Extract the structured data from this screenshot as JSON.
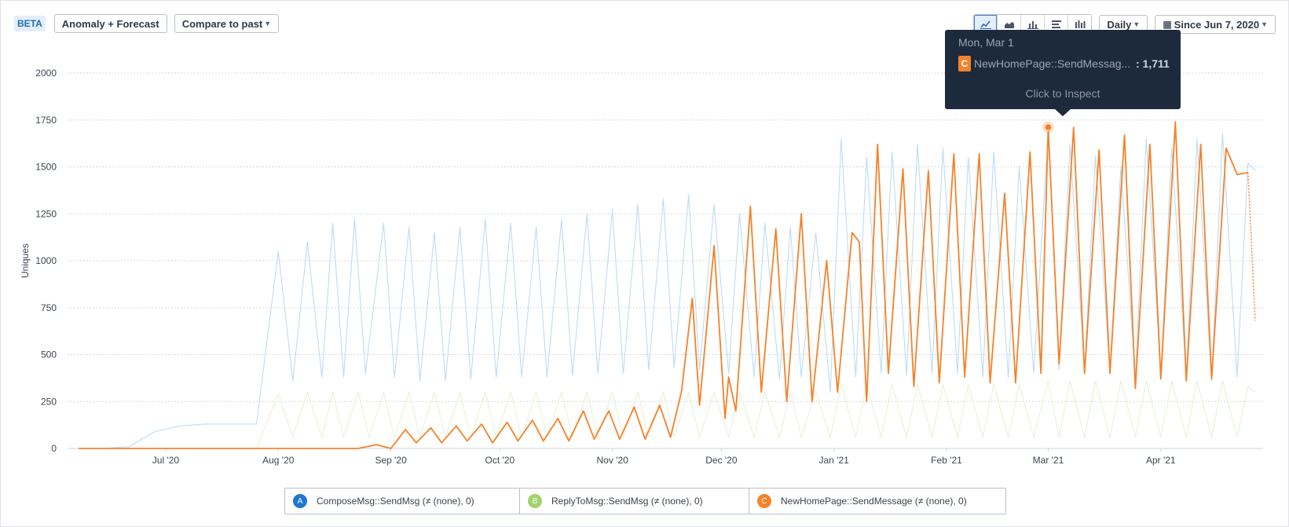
{
  "toolbar": {
    "beta": "BETA",
    "anomaly_label": "Anomaly + Forecast",
    "compare_label": "Compare to past",
    "interval_label": "Daily",
    "range_label": "Since Jun 7, 2020",
    "chart_types": [
      "line-chart-icon",
      "area-chart-icon",
      "bar-chart-icon",
      "horizontal-bar-icon",
      "stacked-bar-icon"
    ]
  },
  "tooltip": {
    "date": "Mon, Mar 1",
    "badge": "C",
    "series_name": "NewHomePage::SendMessag...",
    "value": ": 1,711",
    "action": "Click to Inspect"
  },
  "legend": [
    {
      "badge": "A",
      "label": "ComposeMsg::SendMsg (≠ (none), 0)",
      "color": "#1f77d0"
    },
    {
      "badge": "B",
      "label": "ReplyToMsg::SendMsg (≠ (none), 0)",
      "color": "#a3d16b"
    },
    {
      "badge": "C",
      "label": "NewHomePage::SendMessage (≠ (none), 0)",
      "color": "#f5822a"
    }
  ],
  "chart_data": {
    "type": "line",
    "ylabel": "Uniques",
    "ylim": [
      0,
      2000
    ],
    "yticks": [
      0,
      250,
      500,
      750,
      1000,
      1250,
      1500,
      1750,
      2000
    ],
    "x_range": [
      "2020-06-07",
      "2021-04-27"
    ],
    "x_ticks": [
      {
        "date": "2020-07-01",
        "label": "Jul '20"
      },
      {
        "date": "2020-08-01",
        "label": "Aug '20"
      },
      {
        "date": "2020-09-01",
        "label": "Sep '20"
      },
      {
        "date": "2020-10-01",
        "label": "Oct '20"
      },
      {
        "date": "2020-11-01",
        "label": "Nov '20"
      },
      {
        "date": "2020-12-01",
        "label": "Dec '20"
      },
      {
        "date": "2021-01-01",
        "label": "Jan '21"
      },
      {
        "date": "2021-02-01",
        "label": "Feb '21"
      },
      {
        "date": "2021-03-01",
        "label": "Mar '21"
      },
      {
        "date": "2021-04-01",
        "label": "Apr '21"
      }
    ],
    "grid": true,
    "highlight": {
      "series": "NewHomePage::SendMessage",
      "date": "2021-03-01",
      "value": 1711
    },
    "series": [
      {
        "name": "ComposeMsg::SendMsg",
        "color": "#bcdcf4",
        "points": [
          [
            "2020-06-07",
            0
          ],
          [
            "2020-06-14",
            0
          ],
          [
            "2020-06-21",
            10
          ],
          [
            "2020-06-28",
            90
          ],
          [
            "2020-07-05",
            120
          ],
          [
            "2020-07-12",
            130
          ],
          [
            "2020-07-19",
            130
          ],
          [
            "2020-07-26",
            130
          ],
          [
            "2020-08-01",
            1050
          ],
          [
            "2020-08-05",
            360
          ],
          [
            "2020-08-09",
            1100
          ],
          [
            "2020-08-13",
            380
          ],
          [
            "2020-08-16",
            1200
          ],
          [
            "2020-08-19",
            380
          ],
          [
            "2020-08-22",
            1220
          ],
          [
            "2020-08-25",
            400
          ],
          [
            "2020-08-30",
            1200
          ],
          [
            "2020-09-02",
            380
          ],
          [
            "2020-09-06",
            1180
          ],
          [
            "2020-09-09",
            360
          ],
          [
            "2020-09-13",
            1150
          ],
          [
            "2020-09-16",
            360
          ],
          [
            "2020-09-20",
            1180
          ],
          [
            "2020-09-23",
            370
          ],
          [
            "2020-09-27",
            1220
          ],
          [
            "2020-09-30",
            380
          ],
          [
            "2020-10-04",
            1200
          ],
          [
            "2020-10-07",
            380
          ],
          [
            "2020-10-11",
            1180
          ],
          [
            "2020-10-14",
            380
          ],
          [
            "2020-10-18",
            1220
          ],
          [
            "2020-10-21",
            390
          ],
          [
            "2020-10-25",
            1250
          ],
          [
            "2020-10-28",
            400
          ],
          [
            "2020-11-01",
            1270
          ],
          [
            "2020-11-04",
            400
          ],
          [
            "2020-11-08",
            1300
          ],
          [
            "2020-11-11",
            420
          ],
          [
            "2020-11-15",
            1330
          ],
          [
            "2020-11-18",
            430
          ],
          [
            "2020-11-22",
            1350
          ],
          [
            "2020-11-25",
            420
          ],
          [
            "2020-11-29",
            1300
          ],
          [
            "2020-12-03",
            400
          ],
          [
            "2020-12-06",
            1250
          ],
          [
            "2020-12-10",
            380
          ],
          [
            "2020-12-13",
            1200
          ],
          [
            "2020-12-17",
            370
          ],
          [
            "2020-12-20",
            1180
          ],
          [
            "2020-12-23",
            380
          ],
          [
            "2020-12-27",
            1150
          ],
          [
            "2020-12-31",
            300
          ],
          [
            "2021-01-03",
            1650
          ],
          [
            "2021-01-07",
            380
          ],
          [
            "2021-01-10",
            1550
          ],
          [
            "2021-01-14",
            400
          ],
          [
            "2021-01-17",
            1580
          ],
          [
            "2021-01-21",
            390
          ],
          [
            "2021-01-24",
            1620
          ],
          [
            "2021-01-28",
            400
          ],
          [
            "2021-01-31",
            1600
          ],
          [
            "2021-02-04",
            400
          ],
          [
            "2021-02-07",
            1550
          ],
          [
            "2021-02-11",
            380
          ],
          [
            "2021-02-14",
            1580
          ],
          [
            "2021-02-18",
            380
          ],
          [
            "2021-02-21",
            1500
          ],
          [
            "2021-02-25",
            400
          ],
          [
            "2021-03-01",
            1700
          ],
          [
            "2021-03-04",
            420
          ],
          [
            "2021-03-07",
            1620
          ],
          [
            "2021-03-11",
            410
          ],
          [
            "2021-03-14",
            1560
          ],
          [
            "2021-03-18",
            400
          ],
          [
            "2021-03-21",
            1500
          ],
          [
            "2021-03-25",
            380
          ],
          [
            "2021-03-28",
            1650
          ],
          [
            "2021-04-01",
            390
          ],
          [
            "2021-04-04",
            1600
          ],
          [
            "2021-04-08",
            380
          ],
          [
            "2021-04-11",
            1650
          ],
          [
            "2021-04-15",
            360
          ],
          [
            "2021-04-18",
            1680
          ],
          [
            "2021-04-22",
            380
          ],
          [
            "2021-04-25",
            1520
          ],
          [
            "2021-04-27",
            1480
          ]
        ]
      },
      {
        "name": "ReplyToMsg::SendMsg",
        "color": "#e6f2d6",
        "points": [
          [
            "2020-06-07",
            0
          ],
          [
            "2020-07-26",
            0
          ],
          [
            "2020-08-01",
            290
          ],
          [
            "2020-08-05",
            60
          ],
          [
            "2020-08-09",
            300
          ],
          [
            "2020-08-13",
            60
          ],
          [
            "2020-08-16",
            300
          ],
          [
            "2020-08-19",
            60
          ],
          [
            "2020-08-23",
            300
          ],
          [
            "2020-08-26",
            60
          ],
          [
            "2020-08-30",
            300
          ],
          [
            "2020-09-02",
            60
          ],
          [
            "2020-09-06",
            300
          ],
          [
            "2020-09-09",
            60
          ],
          [
            "2020-09-13",
            300
          ],
          [
            "2020-09-16",
            60
          ],
          [
            "2020-09-20",
            300
          ],
          [
            "2020-09-23",
            60
          ],
          [
            "2020-09-27",
            300
          ],
          [
            "2020-09-30",
            60
          ],
          [
            "2020-10-04",
            300
          ],
          [
            "2020-10-07",
            60
          ],
          [
            "2020-10-11",
            300
          ],
          [
            "2020-10-14",
            60
          ],
          [
            "2020-10-18",
            300
          ],
          [
            "2020-10-21",
            60
          ],
          [
            "2020-10-25",
            300
          ],
          [
            "2020-10-28",
            60
          ],
          [
            "2020-11-01",
            300
          ],
          [
            "2020-11-04",
            60
          ],
          [
            "2020-11-08",
            300
          ],
          [
            "2020-11-11",
            60
          ],
          [
            "2020-11-15",
            300
          ],
          [
            "2020-11-18",
            60
          ],
          [
            "2020-11-22",
            300
          ],
          [
            "2020-11-25",
            60
          ],
          [
            "2020-11-29",
            300
          ],
          [
            "2020-12-03",
            60
          ],
          [
            "2020-12-06",
            300
          ],
          [
            "2020-12-10",
            60
          ],
          [
            "2020-12-13",
            300
          ],
          [
            "2020-12-17",
            60
          ],
          [
            "2020-12-20",
            300
          ],
          [
            "2020-12-23",
            60
          ],
          [
            "2020-12-27",
            300
          ],
          [
            "2020-12-31",
            60
          ],
          [
            "2021-01-03",
            340
          ],
          [
            "2021-01-07",
            60
          ],
          [
            "2021-01-10",
            340
          ],
          [
            "2021-01-14",
            60
          ],
          [
            "2021-01-17",
            340
          ],
          [
            "2021-01-21",
            60
          ],
          [
            "2021-01-24",
            340
          ],
          [
            "2021-01-28",
            60
          ],
          [
            "2021-01-31",
            340
          ],
          [
            "2021-02-04",
            60
          ],
          [
            "2021-02-07",
            340
          ],
          [
            "2021-02-11",
            60
          ],
          [
            "2021-02-14",
            340
          ],
          [
            "2021-02-18",
            60
          ],
          [
            "2021-02-21",
            340
          ],
          [
            "2021-02-25",
            60
          ],
          [
            "2021-03-01",
            360
          ],
          [
            "2021-03-04",
            60
          ],
          [
            "2021-03-07",
            360
          ],
          [
            "2021-03-11",
            60
          ],
          [
            "2021-03-14",
            360
          ],
          [
            "2021-03-18",
            60
          ],
          [
            "2021-03-21",
            360
          ],
          [
            "2021-03-25",
            60
          ],
          [
            "2021-03-28",
            360
          ],
          [
            "2021-04-01",
            60
          ],
          [
            "2021-04-04",
            360
          ],
          [
            "2021-04-08",
            60
          ],
          [
            "2021-04-11",
            360
          ],
          [
            "2021-04-15",
            60
          ],
          [
            "2021-04-18",
            360
          ],
          [
            "2021-04-22",
            60
          ],
          [
            "2021-04-25",
            330
          ],
          [
            "2021-04-27",
            300
          ]
        ]
      },
      {
        "name": "NewHomePage::SendMessage",
        "color": "#f5822a",
        "points": [
          [
            "2020-06-07",
            0
          ],
          [
            "2020-07-30",
            0
          ],
          [
            "2020-08-23",
            0
          ],
          [
            "2020-08-28",
            20
          ],
          [
            "2020-09-01",
            0
          ],
          [
            "2020-09-05",
            100
          ],
          [
            "2020-09-08",
            30
          ],
          [
            "2020-09-12",
            110
          ],
          [
            "2020-09-15",
            30
          ],
          [
            "2020-09-19",
            120
          ],
          [
            "2020-09-22",
            40
          ],
          [
            "2020-09-26",
            130
          ],
          [
            "2020-09-29",
            30
          ],
          [
            "2020-10-03",
            140
          ],
          [
            "2020-10-06",
            40
          ],
          [
            "2020-10-10",
            150
          ],
          [
            "2020-10-13",
            40
          ],
          [
            "2020-10-17",
            160
          ],
          [
            "2020-10-20",
            40
          ],
          [
            "2020-10-24",
            200
          ],
          [
            "2020-10-27",
            50
          ],
          [
            "2020-10-31",
            200
          ],
          [
            "2020-11-03",
            50
          ],
          [
            "2020-11-07",
            220
          ],
          [
            "2020-11-10",
            50
          ],
          [
            "2020-11-14",
            230
          ],
          [
            "2020-11-17",
            60
          ],
          [
            "2020-11-20",
            300
          ],
          [
            "2020-11-23",
            800
          ],
          [
            "2020-11-25",
            230
          ],
          [
            "2020-11-29",
            1080
          ],
          [
            "2020-12-02",
            160
          ],
          [
            "2020-12-03",
            380
          ],
          [
            "2020-12-05",
            200
          ],
          [
            "2020-12-09",
            1290
          ],
          [
            "2020-12-12",
            300
          ],
          [
            "2020-12-16",
            1170
          ],
          [
            "2020-12-19",
            250
          ],
          [
            "2020-12-23",
            1250
          ],
          [
            "2020-12-26",
            250
          ],
          [
            "2020-12-30",
            1000
          ],
          [
            "2021-01-02",
            300
          ],
          [
            "2021-01-06",
            1150
          ],
          [
            "2021-01-08",
            1100
          ],
          [
            "2021-01-10",
            250
          ],
          [
            "2021-01-13",
            1620
          ],
          [
            "2021-01-16",
            400
          ],
          [
            "2021-01-20",
            1490
          ],
          [
            "2021-01-23",
            330
          ],
          [
            "2021-01-27",
            1480
          ],
          [
            "2021-01-30",
            350
          ],
          [
            "2021-02-03",
            1570
          ],
          [
            "2021-02-06",
            380
          ],
          [
            "2021-02-10",
            1570
          ],
          [
            "2021-02-13",
            350
          ],
          [
            "2021-02-17",
            1360
          ],
          [
            "2021-02-20",
            350
          ],
          [
            "2021-02-24",
            1580
          ],
          [
            "2021-02-27",
            400
          ],
          [
            "2021-03-01",
            1711
          ],
          [
            "2021-03-04",
            450
          ],
          [
            "2021-03-08",
            1710
          ],
          [
            "2021-03-11",
            400
          ],
          [
            "2021-03-15",
            1590
          ],
          [
            "2021-03-18",
            400
          ],
          [
            "2021-03-22",
            1670
          ],
          [
            "2021-03-25",
            320
          ],
          [
            "2021-03-29",
            1620
          ],
          [
            "2021-04-01",
            370
          ],
          [
            "2021-04-05",
            1740
          ],
          [
            "2021-04-08",
            360
          ],
          [
            "2021-04-12",
            1620
          ],
          [
            "2021-04-15",
            370
          ],
          [
            "2021-04-19",
            1600
          ],
          [
            "2021-04-22",
            1460
          ],
          [
            "2021-04-25",
            1470
          ],
          [
            "2021-04-27",
            680
          ]
        ]
      }
    ]
  }
}
